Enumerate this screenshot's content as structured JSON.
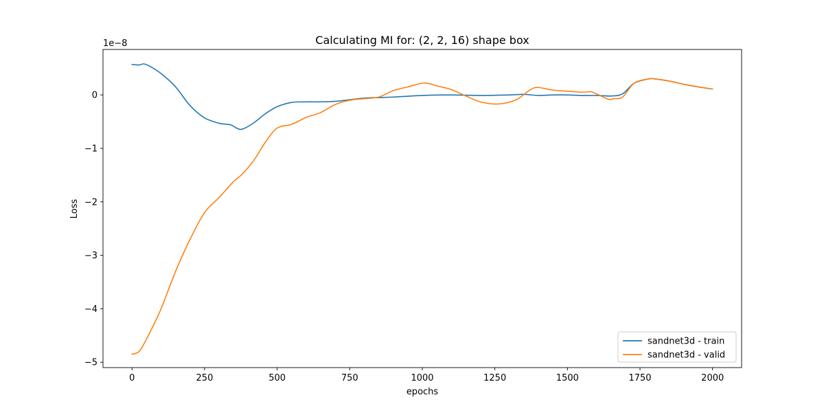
{
  "chart_data": {
    "type": "line",
    "title": "Calculating MI for: (2, 2, 16) shape box",
    "xlabel": "epochs",
    "ylabel": "Loss",
    "y_offset_label": "1e−8",
    "y_scale": 1e-08,
    "xlim": [
      -100,
      2100
    ],
    "ylim": [
      -5.1,
      0.85
    ],
    "x_ticks": [
      0,
      250,
      500,
      750,
      1000,
      1250,
      1500,
      1750,
      2000
    ],
    "x_tick_labels": [
      "0",
      "250",
      "500",
      "750",
      "1000",
      "1250",
      "1500",
      "1750",
      "2000"
    ],
    "y_ticks": [
      0,
      -1,
      -2,
      -3,
      -4,
      -5
    ],
    "y_tick_labels": [
      "0",
      "−1",
      "−2",
      "−3",
      "−4",
      "−5"
    ],
    "grid": false,
    "legend_position": "lower-right",
    "series": [
      {
        "name": "sandnet3d - train",
        "color": "#1f77b4",
        "x": [
          0,
          25,
          40,
          60,
          100,
          150,
          200,
          250,
          300,
          340,
          360,
          380,
          420,
          460,
          500,
          550,
          600,
          650,
          700,
          750,
          800,
          850,
          900,
          1000,
          1100,
          1200,
          1300,
          1350,
          1400,
          1450,
          1500,
          1550,
          1600,
          1650,
          1690,
          1730,
          1780,
          1800,
          1850,
          1900,
          1950,
          2000
        ],
        "y": [
          0.57,
          0.56,
          0.58,
          0.54,
          0.4,
          0.15,
          -0.2,
          -0.43,
          -0.53,
          -0.56,
          -0.62,
          -0.64,
          -0.52,
          -0.35,
          -0.22,
          -0.14,
          -0.13,
          -0.13,
          -0.12,
          -0.09,
          -0.06,
          -0.05,
          -0.04,
          -0.01,
          0.0,
          -0.01,
          0.0,
          0.01,
          -0.01,
          0.0,
          0.0,
          -0.01,
          -0.01,
          -0.02,
          0.02,
          0.22,
          0.3,
          0.3,
          0.26,
          0.2,
          0.15,
          0.11
        ]
      },
      {
        "name": "sandnet3d - valid",
        "color": "#ff7f0e",
        "x": [
          0,
          15,
          30,
          60,
          100,
          150,
          200,
          250,
          300,
          350,
          380,
          420,
          460,
          500,
          550,
          600,
          650,
          700,
          750,
          800,
          850,
          900,
          950,
          1000,
          1025,
          1050,
          1100,
          1150,
          1200,
          1260,
          1320,
          1360,
          1380,
          1400,
          1450,
          1500,
          1550,
          1580,
          1600,
          1640,
          1660,
          1690,
          1730,
          1780,
          1800,
          1850,
          1900,
          1950,
          2000
        ],
        "y": [
          -4.85,
          -4.83,
          -4.76,
          -4.46,
          -4.0,
          -3.3,
          -2.7,
          -2.2,
          -1.92,
          -1.62,
          -1.48,
          -1.22,
          -0.88,
          -0.62,
          -0.55,
          -0.42,
          -0.33,
          -0.18,
          -0.1,
          -0.07,
          -0.04,
          0.08,
          0.15,
          0.22,
          0.21,
          0.17,
          0.1,
          -0.02,
          -0.13,
          -0.17,
          -0.1,
          0.05,
          0.12,
          0.14,
          0.09,
          0.07,
          0.05,
          0.06,
          0.02,
          -0.08,
          -0.07,
          -0.04,
          0.22,
          0.3,
          0.3,
          0.26,
          0.2,
          0.15,
          0.11
        ]
      }
    ]
  }
}
